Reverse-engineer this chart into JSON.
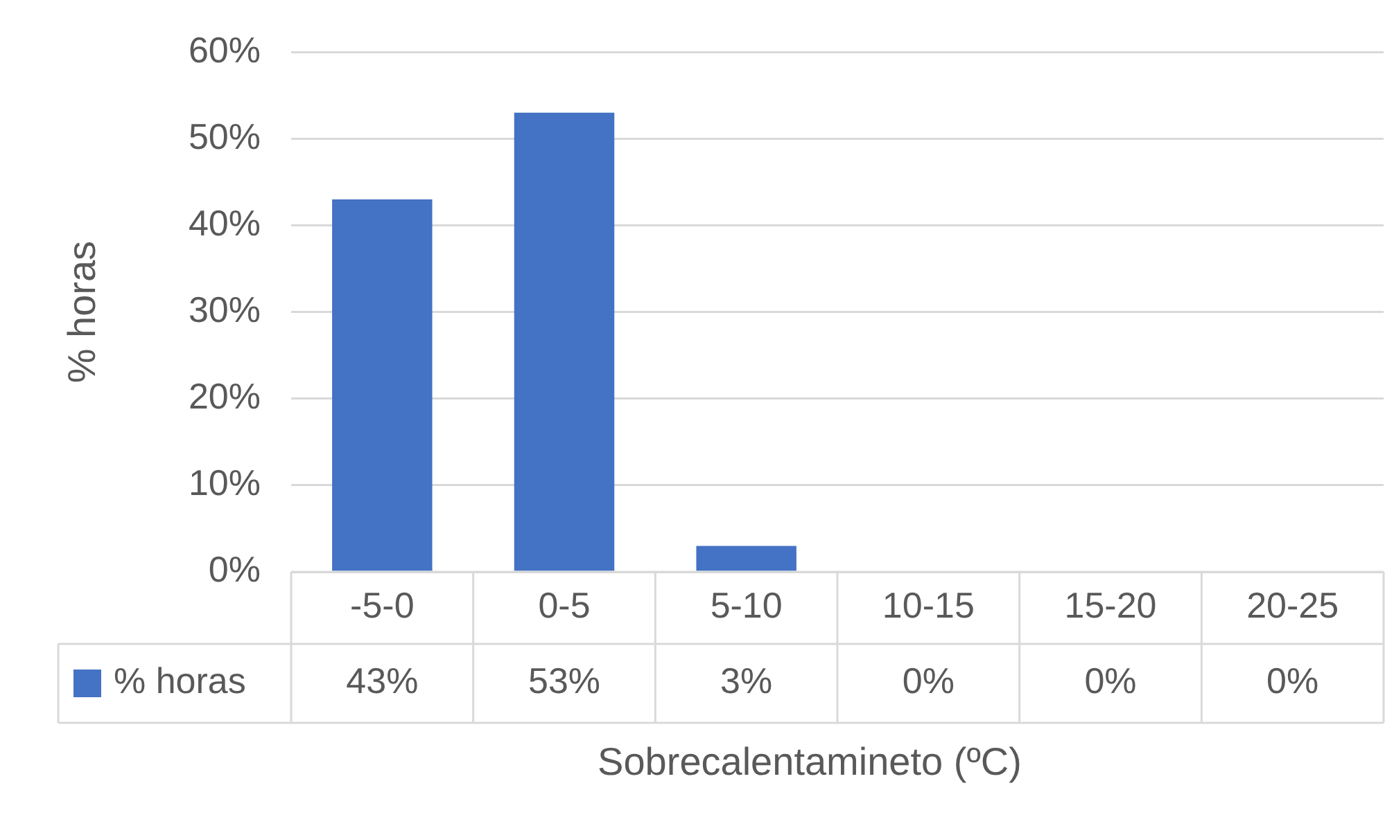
{
  "chart_data": {
    "type": "bar",
    "xlabel": "Sobrecalentamineto (ºC)",
    "ylabel": "% horas",
    "categories": [
      "-5-0",
      "0-5",
      "5-10",
      "10-15",
      "15-20",
      "20-25"
    ],
    "series": [
      {
        "name": "% horas",
        "color": "#4472c4",
        "values": [
          43,
          53,
          3,
          0,
          0,
          0
        ],
        "value_labels": [
          "43%",
          "53%",
          "3%",
          "0%",
          "0%",
          "0%"
        ]
      }
    ],
    "ylim": [
      0,
      60
    ],
    "yticks": [
      {
        "value": 0,
        "label": "0%"
      },
      {
        "value": 10,
        "label": "10%"
      },
      {
        "value": 20,
        "label": "20%"
      },
      {
        "value": 30,
        "label": "30%"
      },
      {
        "value": 40,
        "label": "40%"
      },
      {
        "value": 50,
        "label": "50%"
      },
      {
        "value": 60,
        "label": "60%"
      }
    ],
    "grid": "y"
  }
}
